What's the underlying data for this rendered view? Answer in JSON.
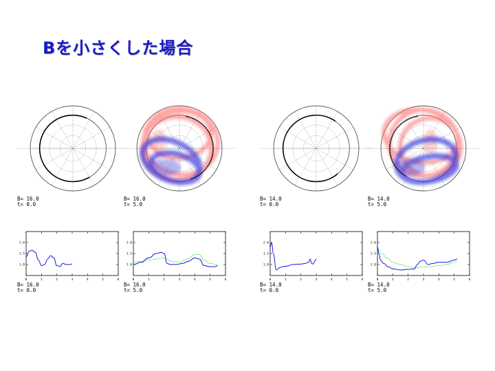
{
  "slide": {
    "title": "Bを小さくした場合"
  },
  "colors": {
    "title": "#1a1ac8",
    "ring_positive": "#ff6a6a",
    "ring_negative": "#3232dc",
    "curve_blue": "#1414e6",
    "curve_green": "#5ae65a",
    "grid": "#555555"
  },
  "panels": [
    {
      "id": "A",
      "B": "16.0",
      "t": "0.0",
      "B_label": "B=  16.0",
      "t_label": "t=   0.0",
      "polar": {
        "arc_start_deg": 65,
        "arc_end_deg": 300,
        "colored": false
      },
      "plot_labels": {
        "B": "B=  16.0",
        "t": "t=   0.0"
      }
    },
    {
      "id": "B",
      "B": "16.0",
      "t": "5.0",
      "B_label": "B=  16.0",
      "t_label": "t=   5.0",
      "polar": {
        "colored": true,
        "variant": "right"
      },
      "plot_labels": {
        "B": "B=  16.0",
        "t": "t=   5.0"
      }
    },
    {
      "id": "C",
      "B": "14.0",
      "t": "0.0",
      "B_label": "B=  14.0",
      "t_label": "t=   0.0",
      "polar": {
        "arc_start_deg": 55,
        "arc_end_deg": 310,
        "colored": false
      },
      "plot_labels": {
        "B": "B=  14.0",
        "t": "t=   0.0"
      }
    },
    {
      "id": "D",
      "B": "14.0",
      "t": "5.0",
      "B_label": "B=  14.0",
      "t_label": "t=   5.0",
      "polar": {
        "colored": true,
        "variant": "left"
      },
      "plot_labels": {
        "B": "B=  14.0",
        "t": "t=   5.0"
      }
    }
  ],
  "chart_data": [
    {
      "type": "line",
      "panel": "A",
      "xlim": [
        0,
        6
      ],
      "ylim": [
        0.5,
        2.5
      ],
      "xticks": [
        "0",
        "1",
        "2",
        "3",
        "4",
        "5",
        "6"
      ],
      "yticks": [
        "1.0",
        "1.5",
        "2.0"
      ],
      "series": [
        {
          "color": "blue",
          "x": [
            0,
            0.2,
            0.4,
            0.6,
            0.8,
            1.0,
            1.2,
            1.4,
            1.6,
            1.8,
            2.0,
            2.2,
            2.4,
            2.6,
            2.8,
            3.0
          ],
          "y": [
            1.35,
            1.6,
            1.65,
            1.55,
            1.2,
            0.95,
            1.0,
            1.25,
            1.4,
            1.3,
            0.95,
            0.92,
            1.05,
            1.0,
            1.0,
            1.02
          ]
        }
      ]
    },
    {
      "type": "line",
      "panel": "B",
      "xlim": [
        0,
        6
      ],
      "ylim": [
        0.5,
        2.5
      ],
      "xticks": [
        "0",
        "1",
        "2",
        "3",
        "4",
        "5",
        "6"
      ],
      "yticks": [
        "1.0",
        "1.5",
        "2.0"
      ],
      "series": [
        {
          "color": "green",
          "x": [
            0,
            0.5,
            1.0,
            1.5,
            2.0,
            2.5,
            3.0,
            3.5,
            4.0,
            4.3,
            4.6,
            5.0,
            5.5
          ],
          "y": [
            1.1,
            1.15,
            1.2,
            1.25,
            1.3,
            1.15,
            1.1,
            1.25,
            1.45,
            1.45,
            1.2,
            1.05,
            0.98
          ]
        },
        {
          "color": "blue",
          "x": [
            0,
            0.5,
            1.0,
            1.5,
            1.8,
            2.0,
            2.2,
            2.4,
            2.8,
            3.2,
            3.6,
            4.0,
            4.3,
            4.6,
            5.0,
            5.3,
            5.5
          ],
          "y": [
            1.0,
            1.1,
            1.3,
            1.5,
            1.55,
            1.5,
            1.05,
            1.0,
            1.0,
            1.05,
            1.15,
            1.3,
            1.25,
            0.95,
            0.9,
            0.9,
            0.95
          ]
        }
      ]
    },
    {
      "type": "line",
      "panel": "C",
      "xlim": [
        0,
        6
      ],
      "ylim": [
        0.5,
        2.5
      ],
      "xticks": [
        "0",
        "1",
        "2",
        "3",
        "4",
        "5",
        "6"
      ],
      "yticks": [
        "1.0",
        "1.5",
        "2.0"
      ],
      "series": [
        {
          "color": "blue",
          "x": [
            0,
            0.1,
            0.2,
            0.4,
            0.6,
            0.8,
            1.0,
            1.5,
            2.0,
            2.3,
            2.5,
            2.6,
            2.7,
            2.8,
            2.9,
            3.0
          ],
          "y": [
            1.8,
            2.0,
            1.5,
            0.75,
            0.85,
            0.9,
            0.92,
            1.0,
            1.02,
            1.05,
            1.1,
            1.25,
            1.05,
            1.02,
            1.15,
            1.25
          ]
        }
      ]
    },
    {
      "type": "line",
      "panel": "D",
      "xlim": [
        0,
        6
      ],
      "ylim": [
        0.5,
        2.5
      ],
      "xticks": [
        "0",
        "1",
        "2",
        "3",
        "4",
        "5",
        "6"
      ],
      "yticks": [
        "1.0",
        "1.5",
        "2.0"
      ],
      "series": [
        {
          "color": "green",
          "x": [
            0,
            0.3,
            0.6,
            1.0,
            1.5,
            2.0,
            2.5,
            3.0,
            3.5,
            4.0,
            4.5,
            5.0,
            5.2
          ],
          "y": [
            1.7,
            1.5,
            1.3,
            1.1,
            1.0,
            0.9,
            0.85,
            0.9,
            0.9,
            0.95,
            1.0,
            1.1,
            1.15
          ]
        },
        {
          "color": "blue",
          "x": [
            0,
            0.1,
            0.2,
            0.4,
            0.7,
            1.0,
            1.5,
            2.0,
            2.4,
            2.6,
            2.8,
            3.0,
            3.3,
            3.6,
            4.0,
            4.5,
            5.0,
            5.2
          ],
          "y": [
            1.8,
            1.5,
            1.2,
            1.05,
            0.9,
            0.8,
            0.75,
            0.78,
            0.8,
            1.0,
            1.15,
            1.2,
            1.0,
            1.05,
            1.1,
            1.1,
            1.2,
            1.25
          ]
        }
      ]
    }
  ]
}
